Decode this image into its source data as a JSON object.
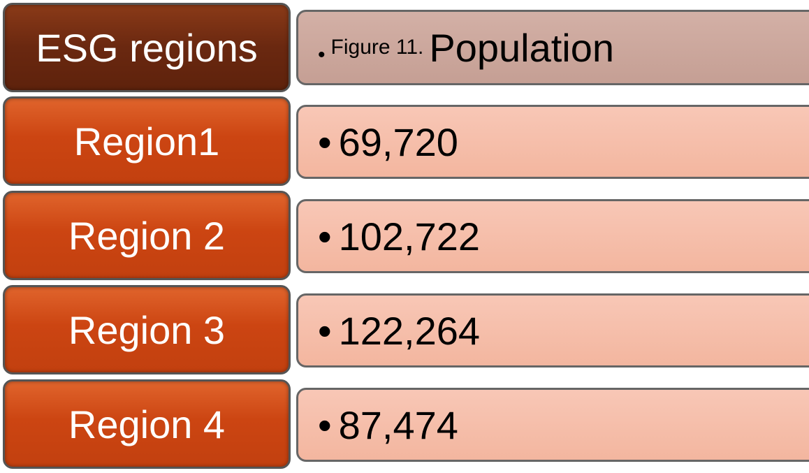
{
  "header": {
    "label": "ESG regions",
    "caption": "Figure 11.",
    "title": "Population"
  },
  "rows": [
    {
      "label": "Region1",
      "value": "69,720"
    },
    {
      "label": "Region 2",
      "value": "102,722"
    },
    {
      "label": "Region 3",
      "value": "122,264"
    },
    {
      "label": "Region 4",
      "value": "87,474"
    }
  ]
}
